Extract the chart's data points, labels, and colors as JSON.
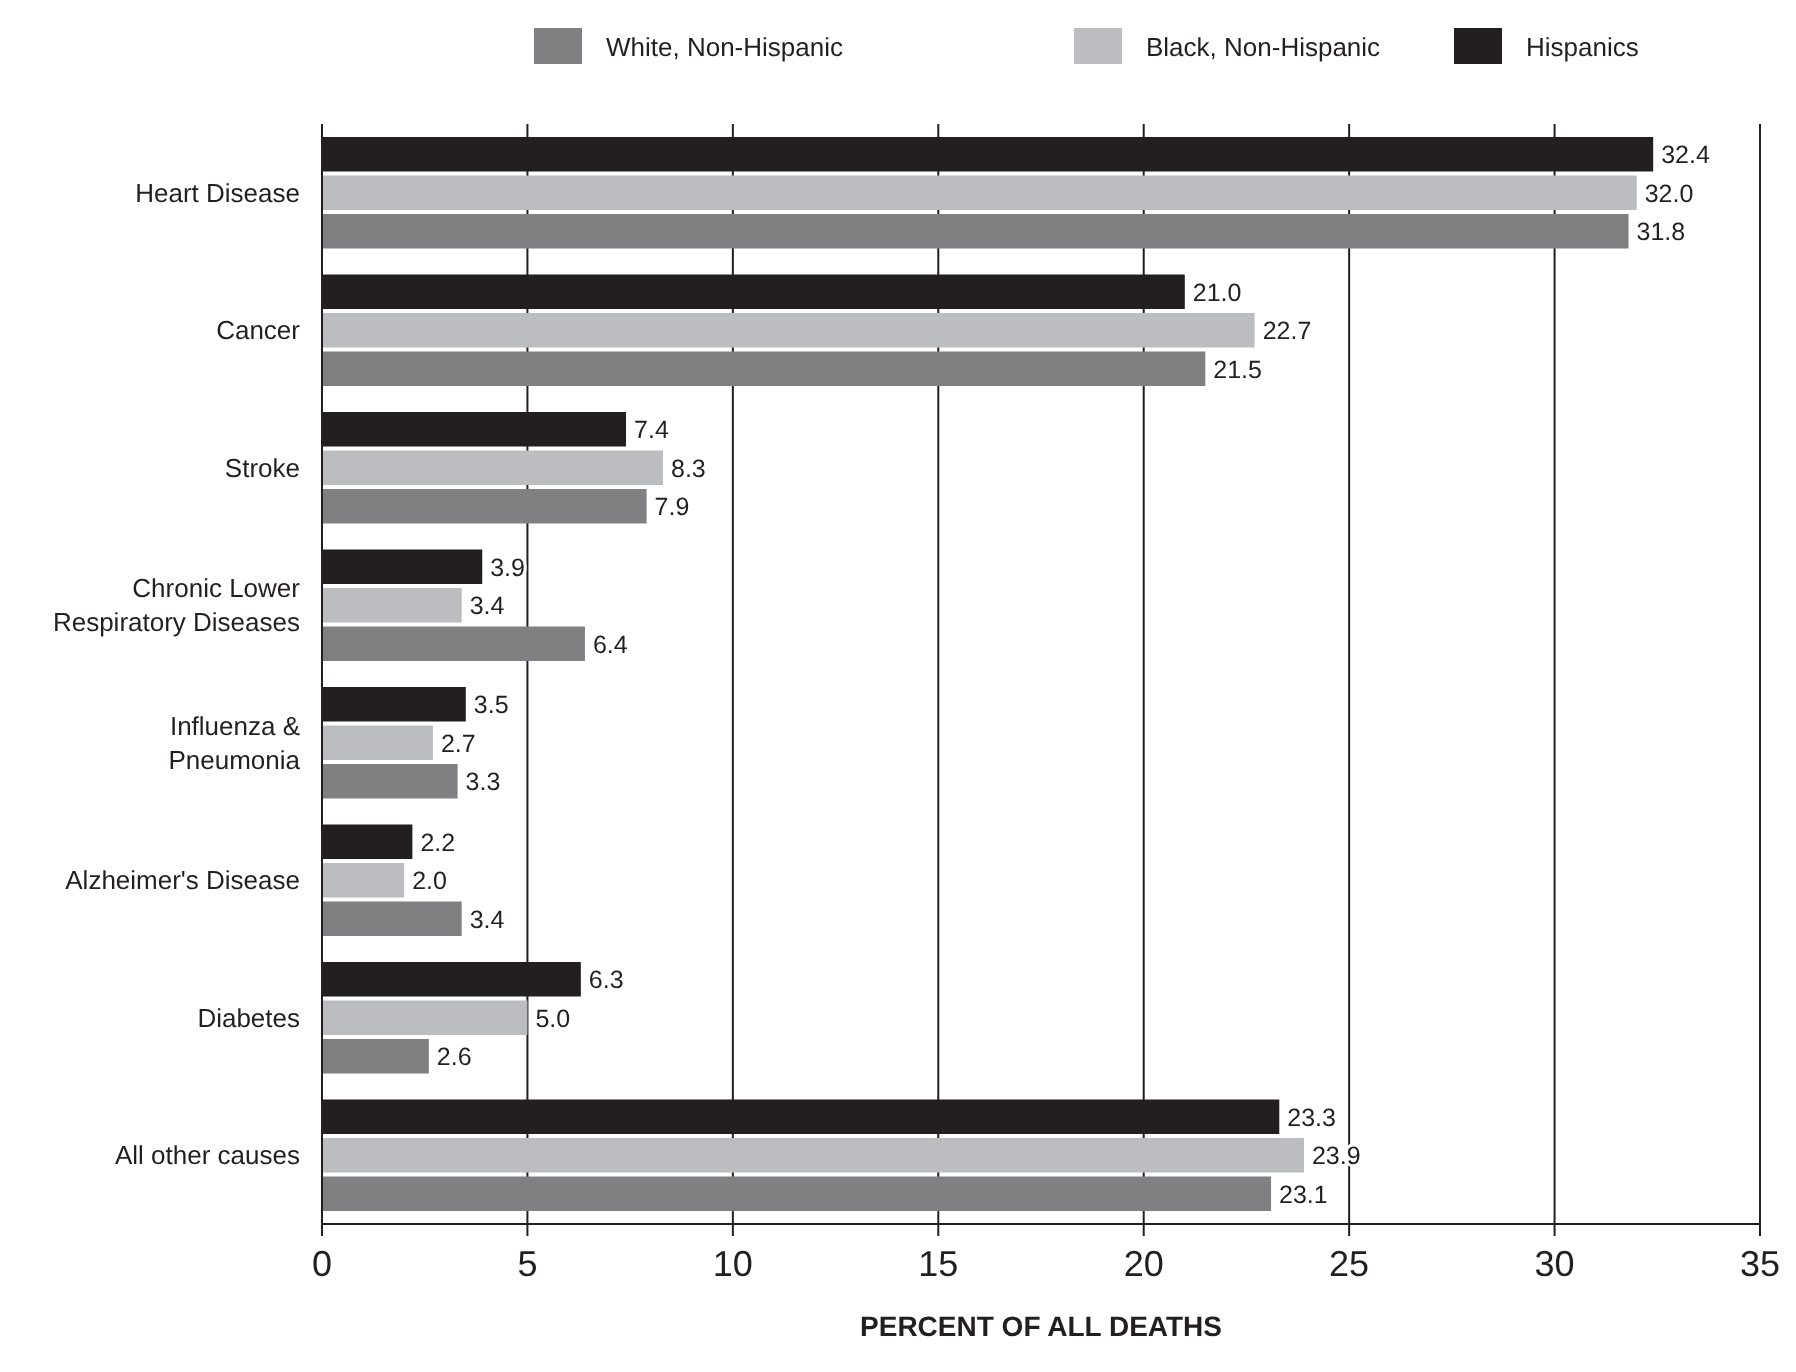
{
  "chart_data": {
    "type": "bar",
    "orientation": "horizontal",
    "xlabel": "PERCENT OF ALL DEATHS",
    "categories": [
      "Heart Disease",
      "Cancer",
      "Stroke",
      "Chronic Lower Respiratory Diseases",
      "Influenza & Pneumonia",
      "Alzheimer's Disease",
      "Diabetes",
      "All other causes"
    ],
    "series": [
      {
        "name": "White, Non-Hispanic",
        "color": "#808082",
        "values": [
          31.8,
          21.5,
          7.9,
          6.4,
          3.3,
          3.4,
          2.6,
          23.1
        ],
        "value_labels": [
          "31.8",
          "21.5",
          "7.9",
          "6.4",
          "3.3",
          "3.4",
          "2.6",
          "23.1"
        ]
      },
      {
        "name": "Black, Non-Hispanic",
        "color": "#bcbdc0",
        "values": [
          32.0,
          22.7,
          8.3,
          3.4,
          2.7,
          2.0,
          5.0,
          23.9
        ],
        "value_labels": [
          "32.0",
          "22.7",
          "8.3",
          "3.4",
          "2.7",
          "2.0",
          "5.0",
          "23.9"
        ]
      },
      {
        "name": "Hispanics",
        "color": "#231f20",
        "values": [
          32.4,
          21.0,
          7.4,
          3.9,
          3.5,
          2.2,
          6.3,
          23.3
        ],
        "value_labels": [
          "32.4",
          "21.0",
          "7.4",
          "3.9",
          "3.5",
          "2.2",
          "6.3",
          "23.3"
        ]
      }
    ],
    "xlim": [
      0,
      35
    ],
    "xticks": [
      0,
      5,
      10,
      15,
      20,
      25,
      30,
      35
    ],
    "grid": "x",
    "legend": "top"
  }
}
